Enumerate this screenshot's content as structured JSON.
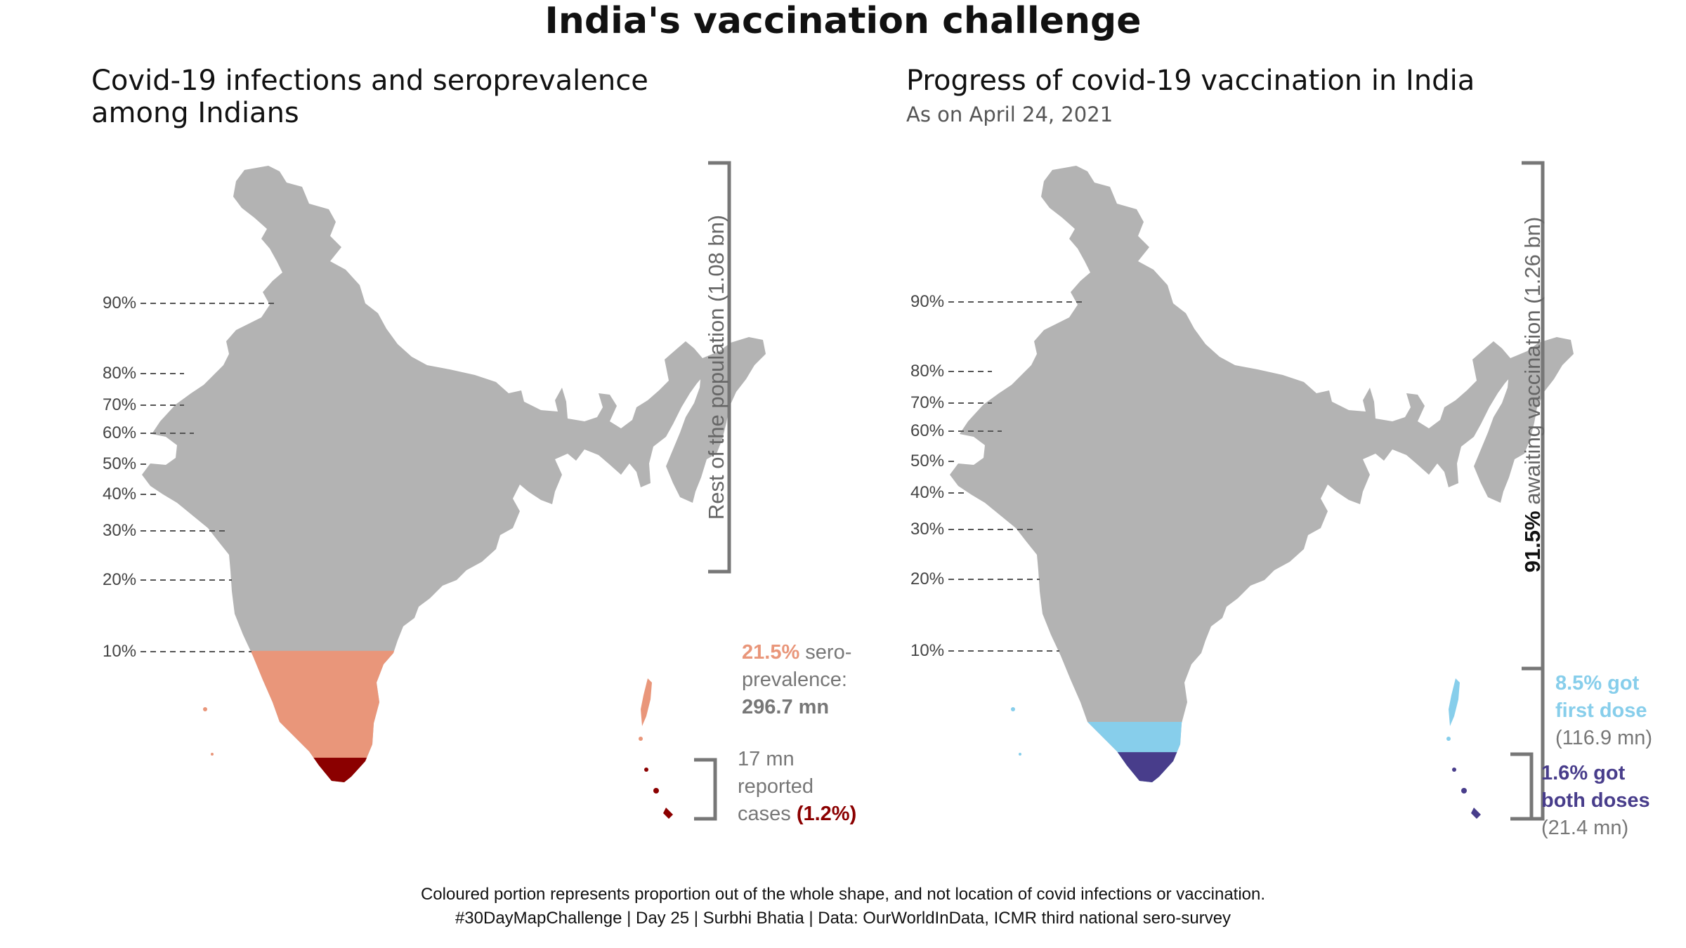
{
  "title": "India's vaccination challenge",
  "left_panel": {
    "title_line1": "Covid-19 infections and seroprevalence",
    "title_line2": "among Indians",
    "ticks": [
      "90%",
      "80%",
      "70%",
      "60%",
      "50%",
      "40%",
      "30%",
      "20%",
      "10%"
    ],
    "rest_label": "Rest of the population (1.08 bn)",
    "sero_pct": "21.5%",
    "sero_text1": " sero-",
    "sero_text2": "prevalence:",
    "sero_value": "296.7 mn",
    "cases_line1": "17 mn",
    "cases_line2": "reported",
    "cases_line3": "cases ",
    "cases_pct": "(1.2%)",
    "colors": {
      "grey": "#b3b3b3",
      "sero": "#e9967a",
      "cases": "#8b0000"
    }
  },
  "right_panel": {
    "title": "Progress of covid-19 vaccination in India",
    "subtitle": "As on April 24, 2021",
    "ticks": [
      "90%",
      "80%",
      "70%",
      "60%",
      "50%",
      "40%",
      "30%",
      "20%",
      "10%"
    ],
    "awaiting_pct": "91.5%",
    "awaiting_text": " awaiting vaccination (1.26 bn)",
    "first_line1": "8.5% got",
    "first_line2": "first dose",
    "first_value": "(116.9 mn)",
    "both_line1": "1.6% got",
    "both_line2": "both doses",
    "both_value": "(21.4 mn)",
    "colors": {
      "grey": "#b3b3b3",
      "first": "#87ceeb",
      "both": "#483d8b"
    }
  },
  "caption_line1": "Coloured portion represents proportion out of the whole shape, and not location of covid infections or vaccination.",
  "caption_line2": "#30DayMapChallenge | Day 25 | Surbhi Bhatia | Data: OurWorldInData, ICMR third national sero-survey",
  "map_data": {
    "left_fill_levels": [
      {
        "name": "rest",
        "share": 0.785
      },
      {
        "name": "seroprevalence",
        "share": 0.215
      },
      {
        "name": "reported-cases",
        "share": 0.012
      }
    ],
    "right_fill_levels": [
      {
        "name": "awaiting",
        "share": 0.915
      },
      {
        "name": "first-dose",
        "share": 0.085
      },
      {
        "name": "both-doses",
        "share": 0.016
      }
    ]
  }
}
